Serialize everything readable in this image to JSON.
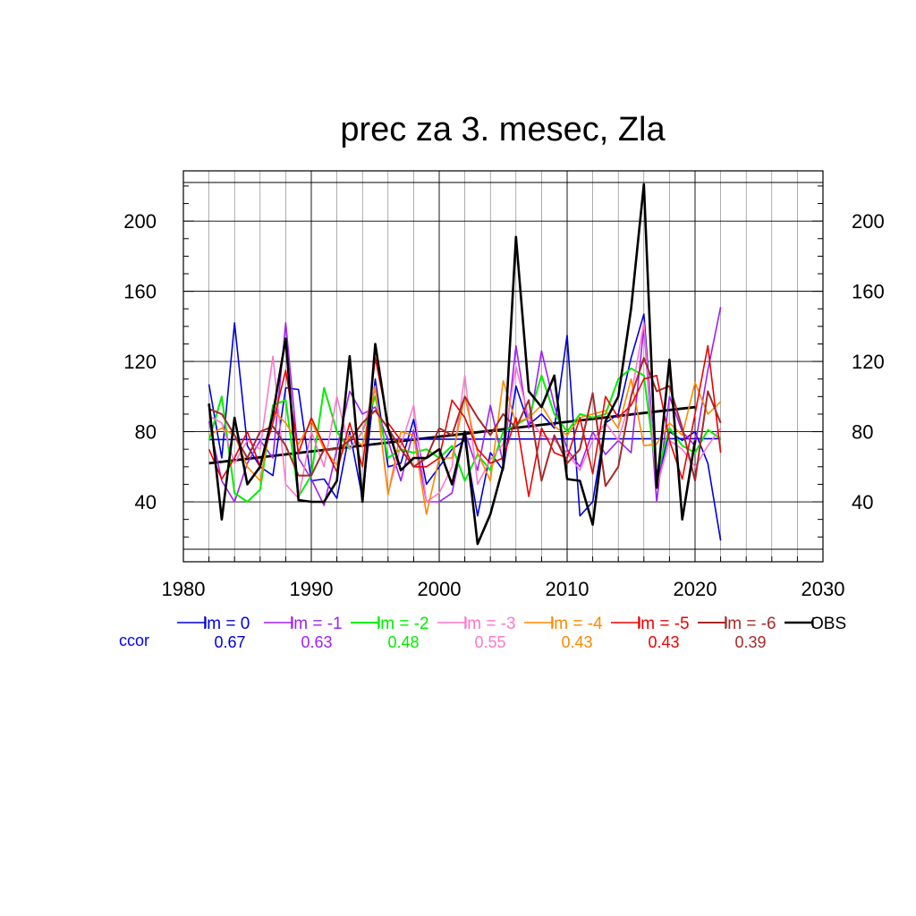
{
  "chart_data": {
    "type": "line",
    "title": "prec za 3. mesec, Zla",
    "xlabel": "",
    "ylabel": "",
    "xlim": [
      1980,
      2030
    ],
    "ylim": [
      13,
      222
    ],
    "x_ticks": [
      1980,
      1990,
      2000,
      2010,
      2020,
      2030
    ],
    "y_ticks": [
      40,
      80,
      120,
      160,
      200
    ],
    "grid": true,
    "legend_position": "bottom",
    "ccor_label": "ccor",
    "x": [
      1982,
      1983,
      1984,
      1985,
      1986,
      1987,
      1988,
      1989,
      1990,
      1991,
      1992,
      1993,
      1994,
      1995,
      1996,
      1997,
      1998,
      1999,
      2000,
      2001,
      2002,
      2003,
      2004,
      2005,
      2006,
      2007,
      2008,
      2009,
      2010,
      2011,
      2012,
      2013,
      2014,
      2015,
      2016,
      2017,
      2018,
      2019,
      2020,
      2021,
      2022
    ],
    "series": [
      {
        "name": "lm = 0",
        "ccor": "0.67",
        "color": "#0000dd",
        "width": 1.6,
        "values": [
          107,
          65,
          142,
          72,
          60,
          55,
          105,
          104,
          52,
          53,
          42,
          80,
          42,
          110,
          60,
          62,
          87,
          50,
          60,
          70,
          75,
          32,
          68,
          58,
          106,
          84,
          90,
          82,
          135,
          32,
          40,
          85,
          90,
          122,
          147,
          50,
          80,
          75,
          80,
          62,
          18
        ]
      },
      {
        "name": "lm = -1",
        "ccor": "0.63",
        "color": "#a020f0",
        "width": 1.6,
        "values": [
          86,
          52,
          40,
          62,
          75,
          65,
          142,
          65,
          53,
          38,
          70,
          103,
          90,
          94,
          75,
          52,
          81,
          40,
          40,
          45,
          80,
          58,
          95,
          62,
          129,
          82,
          126,
          95,
          70,
          60,
          80,
          67,
          75,
          68,
          140,
          40,
          100,
          80,
          72,
          115,
          151
        ]
      },
      {
        "name": "lm = -2",
        "ccor": "0.48",
        "color": "#00ee00",
        "width": 2.0,
        "values": [
          75,
          100,
          45,
          40,
          47,
          95,
          98,
          43,
          55,
          105,
          80,
          70,
          80,
          100,
          65,
          70,
          68,
          70,
          65,
          72,
          52,
          67,
          58,
          80,
          84,
          88,
          112,
          90,
          80,
          90,
          88,
          90,
          110,
          116,
          112,
          55,
          82,
          72,
          68,
          81,
          76
        ]
      },
      {
        "name": "lm = -3",
        "ccor": "0.55",
        "color": "#ff77cc",
        "width": 1.6,
        "values": [
          89,
          85,
          62,
          75,
          70,
          123,
          50,
          42,
          80,
          60,
          100,
          70,
          80,
          106,
          45,
          72,
          95,
          40,
          45,
          60,
          112,
          50,
          64,
          73,
          117,
          88,
          78,
          75,
          68,
          58,
          75,
          85,
          75,
          100,
          142,
          48,
          75,
          70,
          60,
          72,
          82
        ]
      },
      {
        "name": "lm = -4",
        "ccor": "0.43",
        "color": "#ff8800",
        "width": 1.6,
        "values": [
          78,
          82,
          78,
          60,
          52,
          92,
          85,
          73,
          86,
          70,
          61,
          78,
          72,
          105,
          44,
          80,
          78,
          33,
          65,
          65,
          100,
          68,
          52,
          109,
          85,
          88,
          95,
          83,
          78,
          88,
          90,
          92,
          82,
          110,
          72,
          73,
          85,
          78,
          108,
          90,
          97
        ]
      },
      {
        "name": "lm = -5",
        "ccor": "0.43",
        "color": "#ee0000",
        "width": 1.6,
        "values": [
          70,
          53,
          65,
          80,
          60,
          85,
          115,
          68,
          88,
          72,
          57,
          85,
          60,
          122,
          85,
          75,
          60,
          60,
          65,
          98,
          88,
          70,
          62,
          65,
          88,
          43,
          82,
          68,
          65,
          88,
          56,
          100,
          88,
          95,
          110,
          112,
          75,
          53,
          90,
          129,
          68
        ]
      },
      {
        "name": "lm = -6",
        "ccor": "0.39",
        "color": "#a52a2a",
        "width": 2.0,
        "values": [
          93,
          90,
          78,
          65,
          80,
          83,
          72,
          55,
          55,
          70,
          70,
          75,
          85,
          92,
          82,
          70,
          60,
          65,
          82,
          78,
          100,
          88,
          78,
          90,
          82,
          98,
          52,
          78,
          62,
          70,
          102,
          49,
          60,
          100,
          122,
          103,
          106,
          82,
          52,
          103,
          85
        ]
      },
      {
        "name": "OBS",
        "ccor": "",
        "color": "#000000",
        "width": 2.6,
        "values": [
          96,
          30,
          88,
          50,
          60,
          90,
          133,
          41,
          40,
          40,
          52,
          123,
          40,
          130,
          82,
          58,
          65,
          65,
          70,
          50,
          80,
          16,
          33,
          60,
          191,
          103,
          94,
          112,
          53,
          52,
          27,
          86,
          100,
          150,
          221,
          48,
          121,
          30,
          75,
          null,
          null
        ]
      }
    ],
    "trend_lines": [
      {
        "series": "OBS",
        "x": [
          1982,
          2020
        ],
        "y": [
          62,
          94
        ],
        "color": "#000000"
      },
      {
        "series": "lm = 0",
        "x": [
          1982,
          2022
        ],
        "y": [
          75.5,
          76
        ],
        "color": "#0000dd"
      }
    ]
  }
}
